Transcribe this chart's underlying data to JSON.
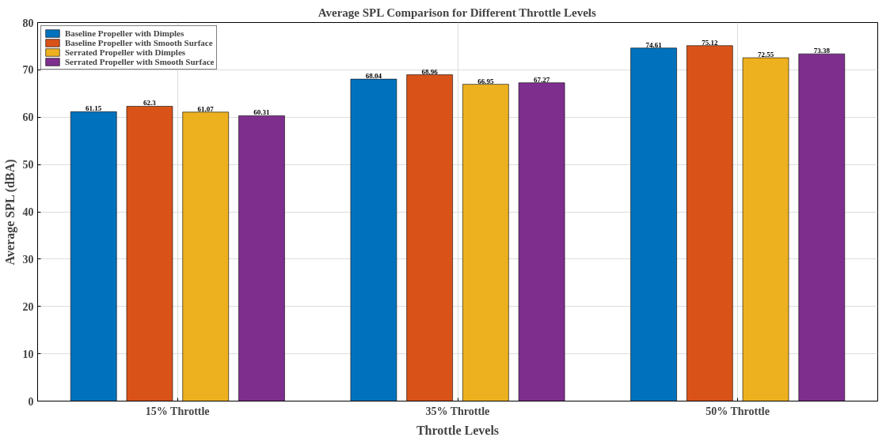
{
  "chart_data": {
    "type": "bar",
    "title": "Average SPL Comparison for Different Throttle Levels",
    "xlabel": "Throttle Levels",
    "ylabel": "Average SPL (dBA)",
    "categories": [
      "15% Throttle",
      "35% Throttle",
      "50% Throttle"
    ],
    "series": [
      {
        "name": "Baseline Propeller with Dimples",
        "color": "#0072bd",
        "values": [
          61.15,
          68.04,
          74.61
        ]
      },
      {
        "name": "Baseline Propeller with Smooth Surface",
        "color": "#d95319",
        "values": [
          62.3,
          68.96,
          75.12
        ]
      },
      {
        "name": "Serrated Propeller with Dimples",
        "color": "#edb120",
        "values": [
          61.07,
          66.95,
          72.55
        ]
      },
      {
        "name": "Serrated Propeller with Smooth Surface",
        "color": "#7e2f8e",
        "values": [
          60.31,
          67.27,
          73.38
        ]
      }
    ],
    "ylim": [
      0,
      80
    ],
    "yticks": [
      0,
      10,
      20,
      30,
      40,
      50,
      60,
      70,
      80
    ],
    "grid": true,
    "legend": "top left",
    "data_labels": true
  }
}
